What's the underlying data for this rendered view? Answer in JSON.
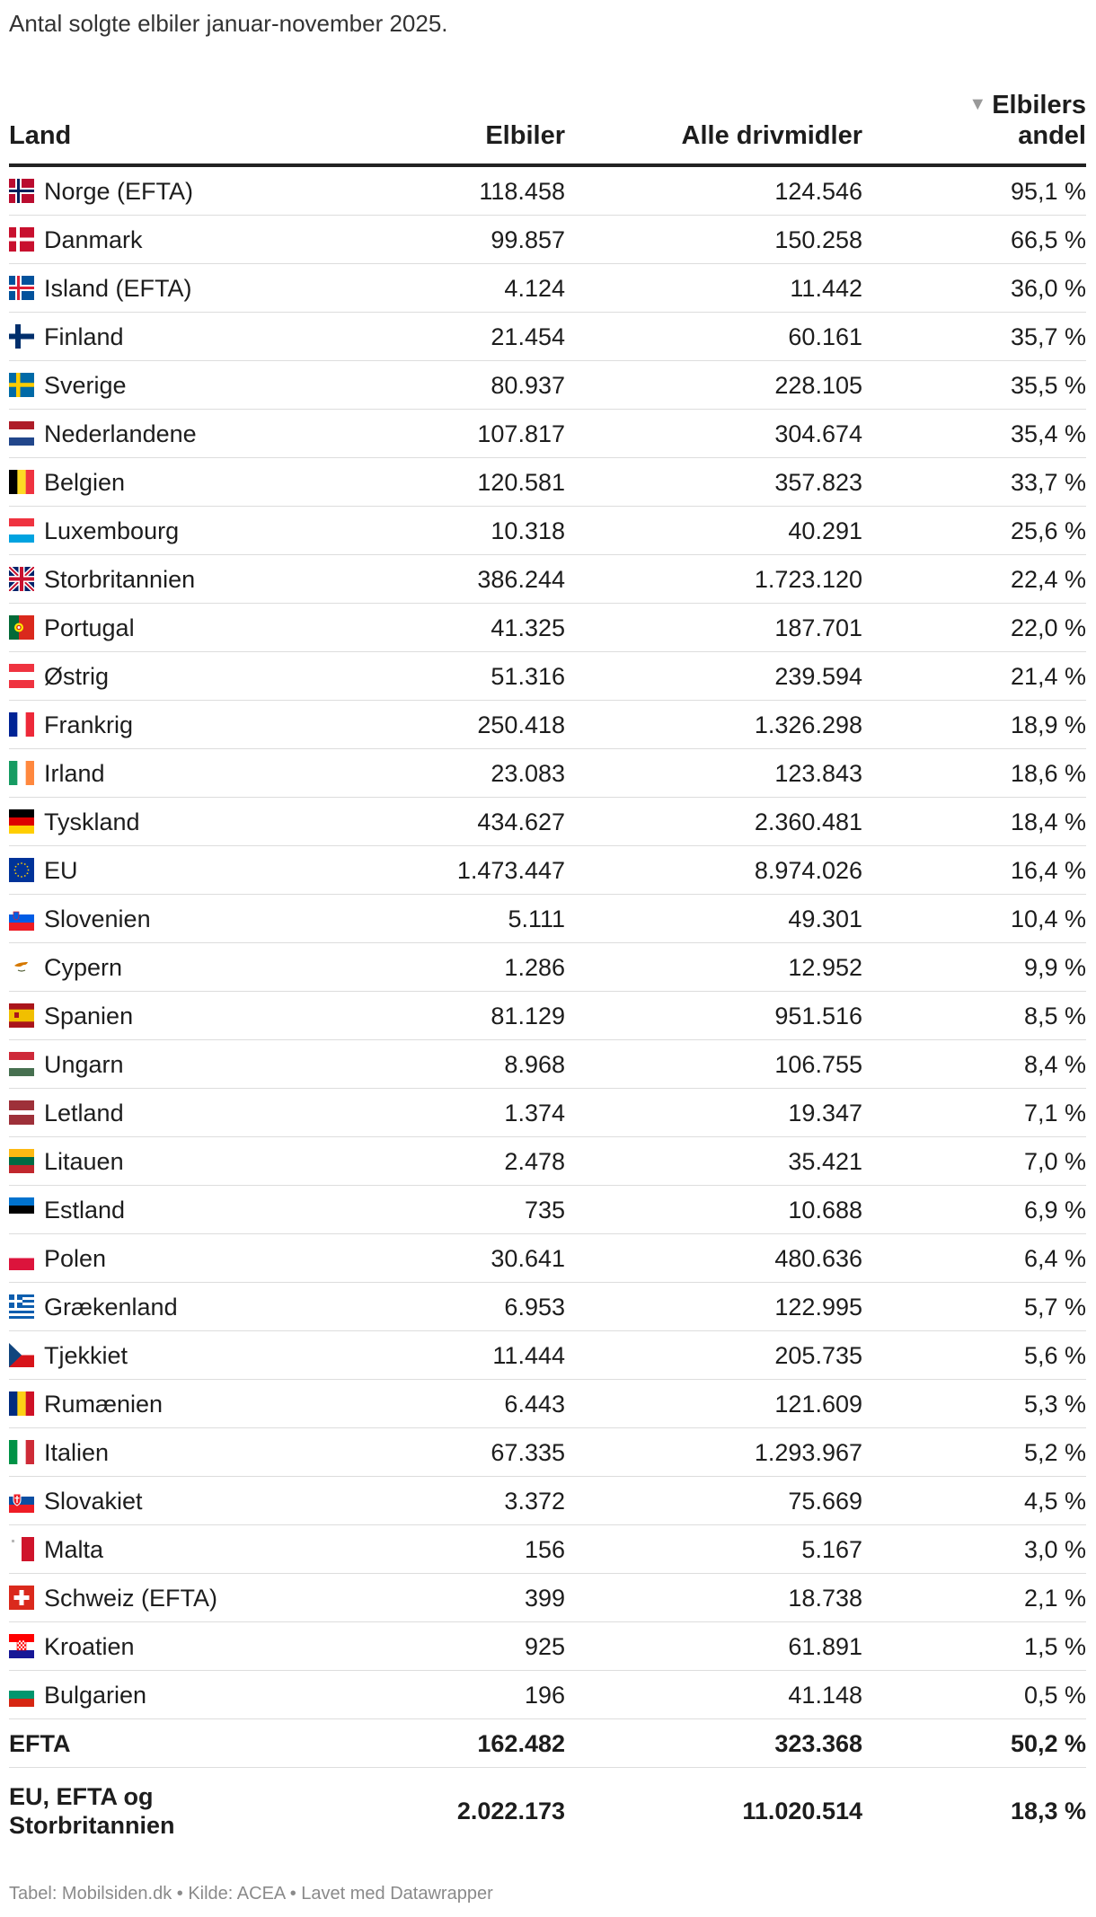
{
  "subtitle": "Antal solgte elbiler januar-november 2025.",
  "footer": "Tabel: Mobilsiden.dk • Kilde: ACEA • Lavet med Datawrapper",
  "chart_data": {
    "type": "table",
    "columns": [
      "Land",
      "Elbiler",
      "Alle drivmidler",
      "Elbilers andel"
    ],
    "sort_indicator": "▼",
    "rows": [
      {
        "country": "Norge (EFTA)",
        "flag": "norway-flag-icon",
        "ev": "118.458",
        "all": "124.546",
        "share": "95,1 %"
      },
      {
        "country": "Danmark",
        "flag": "denmark-flag-icon",
        "ev": "99.857",
        "all": "150.258",
        "share": "66,5 %"
      },
      {
        "country": "Island (EFTA)",
        "flag": "iceland-flag-icon",
        "ev": "4.124",
        "all": "11.442",
        "share": "36,0 %"
      },
      {
        "country": "Finland",
        "flag": "finland-flag-icon",
        "ev": "21.454",
        "all": "60.161",
        "share": "35,7 %"
      },
      {
        "country": "Sverige",
        "flag": "sweden-flag-icon",
        "ev": "80.937",
        "all": "228.105",
        "share": "35,5 %"
      },
      {
        "country": "Nederlandene",
        "flag": "netherlands-flag-icon",
        "ev": "107.817",
        "all": "304.674",
        "share": "35,4 %"
      },
      {
        "country": "Belgien",
        "flag": "belgium-flag-icon",
        "ev": "120.581",
        "all": "357.823",
        "share": "33,7 %"
      },
      {
        "country": "Luxembourg",
        "flag": "luxembourg-flag-icon",
        "ev": "10.318",
        "all": "40.291",
        "share": "25,6 %"
      },
      {
        "country": "Storbritannien",
        "flag": "uk-flag-icon",
        "ev": "386.244",
        "all": "1.723.120",
        "share": "22,4 %"
      },
      {
        "country": "Portugal",
        "flag": "portugal-flag-icon",
        "ev": "41.325",
        "all": "187.701",
        "share": "22,0 %"
      },
      {
        "country": "Østrig",
        "flag": "austria-flag-icon",
        "ev": "51.316",
        "all": "239.594",
        "share": "21,4 %"
      },
      {
        "country": "Frankrig",
        "flag": "france-flag-icon",
        "ev": "250.418",
        "all": "1.326.298",
        "share": "18,9 %"
      },
      {
        "country": "Irland",
        "flag": "ireland-flag-icon",
        "ev": "23.083",
        "all": "123.843",
        "share": "18,6 %"
      },
      {
        "country": "Tyskland",
        "flag": "germany-flag-icon",
        "ev": "434.627",
        "all": "2.360.481",
        "share": "18,4 %"
      },
      {
        "country": "EU",
        "flag": "eu-flag-icon",
        "ev": "1.473.447",
        "all": "8.974.026",
        "share": "16,4 %"
      },
      {
        "country": "Slovenien",
        "flag": "slovenia-flag-icon",
        "ev": "5.111",
        "all": "49.301",
        "share": "10,4 %"
      },
      {
        "country": "Cypern",
        "flag": "cyprus-flag-icon",
        "ev": "1.286",
        "all": "12.952",
        "share": "9,9 %"
      },
      {
        "country": "Spanien",
        "flag": "spain-flag-icon",
        "ev": "81.129",
        "all": "951.516",
        "share": "8,5 %"
      },
      {
        "country": "Ungarn",
        "flag": "hungary-flag-icon",
        "ev": "8.968",
        "all": "106.755",
        "share": "8,4 %"
      },
      {
        "country": "Letland",
        "flag": "latvia-flag-icon",
        "ev": "1.374",
        "all": "19.347",
        "share": "7,1 %"
      },
      {
        "country": "Litauen",
        "flag": "lithuania-flag-icon",
        "ev": "2.478",
        "all": "35.421",
        "share": "7,0 %"
      },
      {
        "country": "Estland",
        "flag": "estonia-flag-icon",
        "ev": "735",
        "all": "10.688",
        "share": "6,9 %"
      },
      {
        "country": "Polen",
        "flag": "poland-flag-icon",
        "ev": "30.641",
        "all": "480.636",
        "share": "6,4 %"
      },
      {
        "country": "Grækenland",
        "flag": "greece-flag-icon",
        "ev": "6.953",
        "all": "122.995",
        "share": "5,7 %"
      },
      {
        "country": "Tjekkiet",
        "flag": "czechia-flag-icon",
        "ev": "11.444",
        "all": "205.735",
        "share": "5,6 %"
      },
      {
        "country": "Rumænien",
        "flag": "romania-flag-icon",
        "ev": "6.443",
        "all": "121.609",
        "share": "5,3 %"
      },
      {
        "country": "Italien",
        "flag": "italy-flag-icon",
        "ev": "67.335",
        "all": "1.293.967",
        "share": "5,2 %"
      },
      {
        "country": "Slovakiet",
        "flag": "slovakia-flag-icon",
        "ev": "3.372",
        "all": "75.669",
        "share": "4,5 %"
      },
      {
        "country": "Malta",
        "flag": "malta-flag-icon",
        "ev": "156",
        "all": "5.167",
        "share": "3,0 %"
      },
      {
        "country": "Schweiz (EFTA)",
        "flag": "switzerland-flag-icon",
        "ev": "399",
        "all": "18.738",
        "share": "2,1 %"
      },
      {
        "country": "Kroatien",
        "flag": "croatia-flag-icon",
        "ev": "925",
        "all": "61.891",
        "share": "1,5 %"
      },
      {
        "country": "Bulgarien",
        "flag": "bulgaria-flag-icon",
        "ev": "196",
        "all": "41.148",
        "share": "0,5 %"
      }
    ],
    "totals": [
      {
        "country": "EFTA",
        "ev": "162.482",
        "all": "323.368",
        "share": "50,2 %"
      },
      {
        "country": "EU, EFTA og Storbritannien",
        "ev": "2.022.173",
        "all": "11.020.514",
        "share": "18,3 %"
      }
    ]
  }
}
